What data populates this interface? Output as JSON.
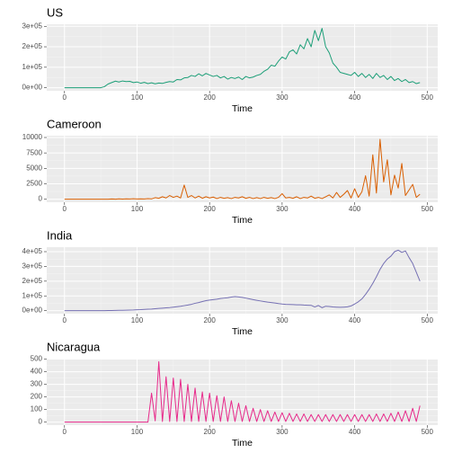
{
  "chart_data": [
    {
      "type": "line",
      "title": "US",
      "xlabel": "Time",
      "color": "#1b9e77",
      "x": [
        0,
        5,
        10,
        15,
        20,
        25,
        30,
        35,
        40,
        45,
        50,
        55,
        60,
        65,
        70,
        75,
        80,
        85,
        90,
        95,
        100,
        105,
        110,
        115,
        120,
        125,
        130,
        135,
        140,
        145,
        150,
        155,
        160,
        165,
        170,
        175,
        180,
        185,
        190,
        195,
        200,
        205,
        210,
        215,
        220,
        225,
        230,
        235,
        240,
        245,
        250,
        255,
        260,
        265,
        270,
        275,
        280,
        285,
        290,
        295,
        300,
        305,
        310,
        315,
        320,
        325,
        330,
        335,
        340,
        345,
        350,
        355,
        360,
        365,
        370,
        375,
        380,
        385,
        390,
        395,
        400,
        405,
        410,
        415,
        420,
        425,
        430,
        435,
        440,
        445,
        450,
        455,
        460,
        465,
        470,
        475,
        480,
        485,
        490
      ],
      "values": [
        0,
        0,
        0,
        0,
        0,
        0,
        0,
        0,
        0,
        0,
        0,
        5000,
        18000,
        25000,
        32000,
        28000,
        33000,
        30000,
        31000,
        25000,
        28000,
        22000,
        26000,
        20000,
        24000,
        19000,
        23000,
        21000,
        26000,
        30000,
        28000,
        40000,
        38000,
        48000,
        50000,
        60000,
        55000,
        68000,
        58000,
        70000,
        62000,
        55000,
        60000,
        48000,
        55000,
        42000,
        50000,
        45000,
        52000,
        40000,
        55000,
        48000,
        52000,
        60000,
        65000,
        80000,
        90000,
        110000,
        105000,
        130000,
        150000,
        140000,
        175000,
        185000,
        165000,
        210000,
        190000,
        240000,
        200000,
        280000,
        230000,
        290000,
        200000,
        170000,
        120000,
        100000,
        75000,
        70000,
        65000,
        60000,
        75000,
        55000,
        70000,
        50000,
        65000,
        45000,
        70000,
        50000,
        60000,
        40000,
        55000,
        35000,
        45000,
        30000,
        40000,
        25000,
        30000,
        20000,
        25000
      ],
      "xlim": [
        -24.5,
        514.5
      ],
      "xticks": [
        0,
        100,
        200,
        300,
        400,
        500
      ],
      "ylim": [
        -15000,
        310000
      ],
      "yticks": [
        {
          "value": 0,
          "label": "0e+00"
        },
        {
          "value": 100000,
          "label": "1e+05"
        },
        {
          "value": 200000,
          "label": "2e+05"
        },
        {
          "value": 300000,
          "label": "3e+05"
        }
      ],
      "grid": true
    },
    {
      "type": "line",
      "title": "Cameroon",
      "xlabel": "Time",
      "color": "#d95f02",
      "x": [
        0,
        5,
        10,
        15,
        20,
        25,
        30,
        35,
        40,
        45,
        50,
        55,
        60,
        65,
        70,
        75,
        80,
        85,
        90,
        95,
        100,
        105,
        110,
        115,
        120,
        125,
        130,
        135,
        140,
        145,
        150,
        155,
        160,
        165,
        170,
        175,
        180,
        185,
        190,
        195,
        200,
        205,
        210,
        215,
        220,
        225,
        230,
        235,
        240,
        245,
        250,
        255,
        260,
        265,
        270,
        275,
        280,
        285,
        290,
        295,
        300,
        305,
        310,
        315,
        320,
        325,
        330,
        335,
        340,
        345,
        350,
        355,
        360,
        365,
        370,
        375,
        380,
        385,
        390,
        395,
        400,
        405,
        410,
        415,
        420,
        425,
        430,
        435,
        440,
        445,
        450,
        455,
        460,
        465,
        470,
        475,
        480,
        485,
        490
      ],
      "values": [
        0,
        0,
        0,
        0,
        0,
        0,
        0,
        0,
        0,
        0,
        0,
        0,
        0,
        30,
        10,
        60,
        20,
        50,
        30,
        80,
        40,
        60,
        30,
        100,
        50,
        250,
        150,
        400,
        200,
        600,
        300,
        500,
        200,
        2300,
        300,
        600,
        200,
        500,
        150,
        400,
        200,
        350,
        100,
        300,
        150,
        250,
        100,
        300,
        200,
        400,
        150,
        300,
        100,
        250,
        100,
        300,
        150,
        250,
        100,
        300,
        900,
        200,
        300,
        150,
        400,
        100,
        300,
        200,
        500,
        150,
        300,
        100,
        400,
        700,
        200,
        1100,
        300,
        800,
        1400,
        200,
        1700,
        300,
        1200,
        3800,
        500,
        7200,
        1000,
        9700,
        2800,
        6400,
        700,
        3900,
        1800,
        5800,
        600,
        1500,
        2400,
        300,
        800
      ],
      "xlim": [
        -24.5,
        514.5
      ],
      "xticks": [
        0,
        100,
        200,
        300,
        400,
        500
      ],
      "ylim": [
        -490,
        10290
      ],
      "yticks": [
        0,
        2500,
        5000,
        7500,
        10000
      ],
      "grid": true
    },
    {
      "type": "line",
      "title": "India",
      "xlabel": "Time",
      "color": "#7570b3",
      "x": [
        0,
        5,
        10,
        15,
        20,
        25,
        30,
        35,
        40,
        45,
        50,
        55,
        60,
        65,
        70,
        75,
        80,
        85,
        90,
        95,
        100,
        105,
        110,
        115,
        120,
        125,
        130,
        135,
        140,
        145,
        150,
        155,
        160,
        165,
        170,
        175,
        180,
        185,
        190,
        195,
        200,
        205,
        210,
        215,
        220,
        225,
        230,
        235,
        240,
        245,
        250,
        255,
        260,
        265,
        270,
        275,
        280,
        285,
        290,
        295,
        300,
        305,
        310,
        315,
        320,
        325,
        330,
        335,
        340,
        345,
        350,
        355,
        360,
        365,
        370,
        375,
        380,
        385,
        390,
        395,
        400,
        405,
        410,
        415,
        420,
        425,
        430,
        435,
        440,
        445,
        450,
        455,
        460,
        465,
        470,
        475,
        480,
        485,
        490
      ],
      "values": [
        0,
        0,
        0,
        0,
        0,
        0,
        0,
        0,
        0,
        0,
        0,
        0,
        500,
        1000,
        1500,
        2000,
        2500,
        3000,
        3500,
        4500,
        6000,
        7000,
        8500,
        10000,
        11000,
        13000,
        15000,
        17000,
        19000,
        21000,
        24000,
        27000,
        30000,
        34000,
        38000,
        43000,
        50000,
        55000,
        62000,
        68000,
        72000,
        75000,
        78000,
        82000,
        85000,
        88000,
        92000,
        95000,
        93000,
        90000,
        85000,
        80000,
        75000,
        70000,
        66000,
        62000,
        58000,
        55000,
        52000,
        48000,
        45000,
        43000,
        42000,
        41000,
        40000,
        40000,
        38000,
        37000,
        36000,
        25000,
        35000,
        20000,
        30000,
        28000,
        25000,
        24000,
        23000,
        24000,
        26000,
        32000,
        45000,
        60000,
        80000,
        110000,
        145000,
        185000,
        230000,
        280000,
        320000,
        350000,
        370000,
        400000,
        410000,
        395000,
        405000,
        360000,
        320000,
        260000,
        200000
      ],
      "xlim": [
        -24.5,
        514.5
      ],
      "xticks": [
        0,
        100,
        200,
        300,
        400,
        500
      ],
      "ylim": [
        -20500,
        430500
      ],
      "yticks": [
        {
          "value": 0,
          "label": "0e+00"
        },
        {
          "value": 100000,
          "label": "1e+05"
        },
        {
          "value": 200000,
          "label": "2e+05"
        },
        {
          "value": 300000,
          "label": "3e+05"
        },
        {
          "value": 400000,
          "label": "4e+05"
        }
      ],
      "grid": true
    },
    {
      "type": "line",
      "title": "Nicaragua",
      "xlabel": "Time",
      "color": "#e7298a",
      "x": [
        0,
        5,
        10,
        15,
        20,
        25,
        30,
        35,
        40,
        45,
        50,
        55,
        60,
        65,
        70,
        75,
        80,
        85,
        90,
        95,
        100,
        105,
        110,
        115,
        120,
        125,
        130,
        135,
        140,
        145,
        150,
        155,
        160,
        165,
        170,
        175,
        180,
        185,
        190,
        195,
        200,
        205,
        210,
        215,
        220,
        225,
        230,
        235,
        240,
        245,
        250,
        255,
        260,
        265,
        270,
        275,
        280,
        285,
        290,
        295,
        300,
        305,
        310,
        315,
        320,
        325,
        330,
        335,
        340,
        345,
        350,
        355,
        360,
        365,
        370,
        375,
        380,
        385,
        390,
        395,
        400,
        405,
        410,
        415,
        420,
        425,
        430,
        435,
        440,
        445,
        450,
        455,
        460,
        465,
        470,
        475,
        480,
        485,
        490
      ],
      "values": [
        0,
        0,
        0,
        0,
        0,
        0,
        0,
        0,
        0,
        0,
        0,
        0,
        0,
        0,
        0,
        0,
        0,
        0,
        0,
        0,
        0,
        0,
        0,
        0,
        230,
        10,
        480,
        5,
        360,
        5,
        350,
        5,
        340,
        5,
        300,
        5,
        270,
        5,
        240,
        5,
        230,
        5,
        210,
        5,
        200,
        5,
        170,
        5,
        150,
        5,
        130,
        5,
        110,
        5,
        100,
        5,
        90,
        5,
        80,
        5,
        75,
        5,
        70,
        5,
        65,
        5,
        65,
        5,
        60,
        5,
        60,
        5,
        60,
        5,
        60,
        5,
        60,
        5,
        60,
        5,
        60,
        5,
        60,
        5,
        60,
        5,
        65,
        5,
        65,
        5,
        70,
        5,
        80,
        5,
        90,
        5,
        110,
        5,
        130
      ],
      "xlim": [
        -24.5,
        514.5
      ],
      "xticks": [
        0,
        100,
        200,
        300,
        400,
        500
      ],
      "ylim": [
        -24,
        504
      ],
      "yticks": [
        0,
        100,
        200,
        300,
        400,
        500
      ],
      "grid": true
    }
  ]
}
